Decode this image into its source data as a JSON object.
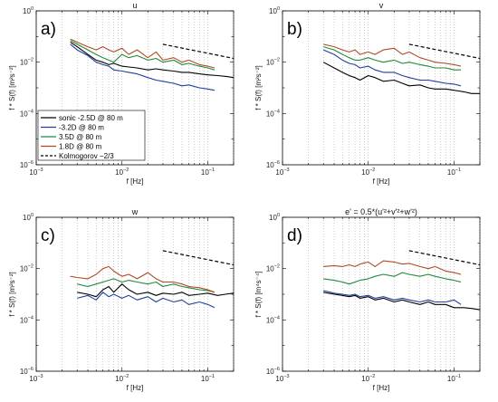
{
  "chart_data": [
    {
      "type": "line",
      "panel_label": "a)",
      "title": "u",
      "xlabel": "f [Hz]",
      "ylabel": "f * S(f) [m²s⁻²]",
      "xscale": "log",
      "yscale": "log",
      "xlim": [
        0.001,
        0.2
      ],
      "ylim": [
        1e-06,
        1
      ],
      "grid": "vertical-minor-dotted",
      "legend": {
        "placement": "center-left",
        "entries": [
          "sonic -2.5D @ 80 m",
          "-3.2D @ 80 m",
          "3.5D @ 80 m",
          "1.8D @ 80 m",
          "Kolmogorov −2/3"
        ]
      },
      "series": [
        {
          "name": "sonic -2.5D @ 80 m",
          "color": "#000000",
          "x": [
            0.0025,
            0.003,
            0.004,
            0.005,
            0.006,
            0.007,
            0.008,
            0.01,
            0.012,
            0.015,
            0.02,
            0.025,
            0.03,
            0.04,
            0.05,
            0.06,
            0.08,
            0.1,
            0.13,
            0.16,
            0.2
          ],
          "y": [
            0.06,
            0.04,
            0.02,
            0.012,
            0.01,
            0.008,
            0.009,
            0.007,
            0.0065,
            0.006,
            0.005,
            0.0055,
            0.005,
            0.0045,
            0.004,
            0.004,
            0.0035,
            0.0032,
            0.003,
            0.0028,
            0.0025
          ]
        },
        {
          "name": "-3.2D @ 80 m",
          "color": "#1f3f9c",
          "x": [
            0.0025,
            0.003,
            0.004,
            0.005,
            0.006,
            0.007,
            0.008,
            0.01,
            0.012,
            0.015,
            0.02,
            0.025,
            0.03,
            0.04,
            0.05,
            0.06,
            0.08,
            0.1,
            0.12
          ],
          "y": [
            0.05,
            0.03,
            0.018,
            0.01,
            0.008,
            0.007,
            0.005,
            0.0045,
            0.004,
            0.0035,
            0.0025,
            0.002,
            0.0018,
            0.0015,
            0.0012,
            0.0013,
            0.001,
            0.0009,
            0.0008
          ]
        },
        {
          "name": "3.5D @ 80 m",
          "color": "#1f8a3a",
          "x": [
            0.0025,
            0.003,
            0.004,
            0.005,
            0.006,
            0.007,
            0.008,
            0.01,
            0.012,
            0.015,
            0.02,
            0.025,
            0.03,
            0.04,
            0.05,
            0.06,
            0.08,
            0.1,
            0.12
          ],
          "y": [
            0.07,
            0.05,
            0.03,
            0.02,
            0.015,
            0.012,
            0.01,
            0.02,
            0.015,
            0.018,
            0.012,
            0.014,
            0.01,
            0.012,
            0.008,
            0.009,
            0.007,
            0.006,
            0.005
          ]
        },
        {
          "name": "1.8D @ 80 m",
          "color": "#b04a22",
          "x": [
            0.0025,
            0.003,
            0.004,
            0.005,
            0.006,
            0.007,
            0.008,
            0.01,
            0.012,
            0.015,
            0.02,
            0.025,
            0.03,
            0.04,
            0.05,
            0.06,
            0.08,
            0.1,
            0.12
          ],
          "y": [
            0.08,
            0.06,
            0.04,
            0.03,
            0.04,
            0.03,
            0.025,
            0.035,
            0.02,
            0.03,
            0.015,
            0.025,
            0.012,
            0.015,
            0.01,
            0.012,
            0.008,
            0.007,
            0.006
          ]
        },
        {
          "name": "Kolmogorov −2/3",
          "color": "#000000",
          "dashed": true,
          "x": [
            0.03,
            0.2
          ],
          "y": [
            0.05,
            0.014
          ]
        }
      ]
    },
    {
      "type": "line",
      "panel_label": "b)",
      "title": "v",
      "xlabel": "f [Hz]",
      "ylabel": "f * S(f) [m²s⁻²]",
      "xscale": "log",
      "yscale": "log",
      "xlim": [
        0.001,
        0.2
      ],
      "ylim": [
        1e-06,
        1
      ],
      "grid": "vertical-minor-dotted",
      "series": [
        {
          "name": "sonic -2.5D @ 80 m",
          "color": "#000000",
          "x": [
            0.003,
            0.004,
            0.005,
            0.006,
            0.007,
            0.008,
            0.01,
            0.012,
            0.015,
            0.02,
            0.025,
            0.03,
            0.04,
            0.05,
            0.06,
            0.08,
            0.1,
            0.13,
            0.16,
            0.2
          ],
          "y": [
            0.01,
            0.006,
            0.004,
            0.003,
            0.0025,
            0.002,
            0.003,
            0.0025,
            0.0018,
            0.002,
            0.0015,
            0.0012,
            0.0013,
            0.001,
            0.0009,
            0.0009,
            0.0008,
            0.0007,
            0.0006,
            0.0006
          ]
        },
        {
          "name": "-3.2D @ 80 m",
          "color": "#1f3f9c",
          "x": [
            0.003,
            0.004,
            0.005,
            0.006,
            0.007,
            0.008,
            0.01,
            0.012,
            0.015,
            0.02,
            0.025,
            0.03,
            0.04,
            0.05,
            0.06,
            0.08,
            0.1,
            0.12
          ],
          "y": [
            0.03,
            0.02,
            0.012,
            0.009,
            0.008,
            0.006,
            0.007,
            0.005,
            0.004,
            0.004,
            0.003,
            0.0025,
            0.002,
            0.002,
            0.0018,
            0.0015,
            0.0014,
            0.0012
          ]
        },
        {
          "name": "3.5D @ 80 m",
          "color": "#1f8a3a",
          "x": [
            0.003,
            0.004,
            0.005,
            0.006,
            0.007,
            0.008,
            0.01,
            0.012,
            0.015,
            0.02,
            0.025,
            0.03,
            0.04,
            0.05,
            0.06,
            0.08,
            0.1,
            0.12
          ],
          "y": [
            0.04,
            0.03,
            0.02,
            0.015,
            0.012,
            0.012,
            0.015,
            0.012,
            0.01,
            0.012,
            0.009,
            0.01,
            0.008,
            0.007,
            0.006,
            0.006,
            0.005,
            0.005
          ]
        },
        {
          "name": "1.8D @ 80 m",
          "color": "#b04a22",
          "x": [
            0.003,
            0.004,
            0.005,
            0.006,
            0.007,
            0.008,
            0.01,
            0.012,
            0.015,
            0.02,
            0.025,
            0.03,
            0.04,
            0.05,
            0.06,
            0.08,
            0.1,
            0.12
          ],
          "y": [
            0.05,
            0.04,
            0.03,
            0.025,
            0.03,
            0.02,
            0.025,
            0.02,
            0.03,
            0.035,
            0.02,
            0.025,
            0.015,
            0.012,
            0.01,
            0.009,
            0.008,
            0.007
          ]
        },
        {
          "name": "Kolmogorov −2/3",
          "color": "#000000",
          "dashed": true,
          "x": [
            0.03,
            0.2
          ],
          "y": [
            0.05,
            0.014
          ]
        }
      ]
    },
    {
      "type": "line",
      "panel_label": "c)",
      "title": "w",
      "xlabel": "f [Hz]",
      "ylabel": "f * S(f) [m²s⁻²]",
      "xscale": "log",
      "yscale": "log",
      "xlim": [
        0.001,
        0.2
      ],
      "ylim": [
        1e-06,
        1
      ],
      "grid": "vertical-minor-dotted",
      "series": [
        {
          "name": "sonic -2.5D @ 80 m",
          "color": "#000000",
          "x": [
            0.003,
            0.004,
            0.005,
            0.006,
            0.007,
            0.008,
            0.01,
            0.012,
            0.015,
            0.02,
            0.025,
            0.03,
            0.04,
            0.05,
            0.06,
            0.08,
            0.1,
            0.13,
            0.16,
            0.2
          ],
          "y": [
            0.0012,
            0.001,
            0.0008,
            0.0015,
            0.002,
            0.0012,
            0.0025,
            0.0015,
            0.001,
            0.0012,
            0.0009,
            0.0011,
            0.001,
            0.0012,
            0.0009,
            0.001,
            0.0011,
            0.0009,
            0.001,
            0.0011
          ]
        },
        {
          "name": "-3.2D @ 80 m",
          "color": "#1f3f9c",
          "x": [
            0.003,
            0.004,
            0.005,
            0.006,
            0.007,
            0.008,
            0.01,
            0.012,
            0.015,
            0.02,
            0.025,
            0.03,
            0.04,
            0.05,
            0.06,
            0.08,
            0.1,
            0.12
          ],
          "y": [
            0.0007,
            0.0009,
            0.0006,
            0.0012,
            0.0008,
            0.001,
            0.0007,
            0.0009,
            0.0006,
            0.0008,
            0.0005,
            0.0007,
            0.0005,
            0.0006,
            0.0004,
            0.0005,
            0.0004,
            0.0003
          ]
        },
        {
          "name": "3.5D @ 80 m",
          "color": "#1f8a3a",
          "x": [
            0.003,
            0.004,
            0.005,
            0.006,
            0.007,
            0.008,
            0.01,
            0.012,
            0.015,
            0.02,
            0.025,
            0.03,
            0.04,
            0.05,
            0.06,
            0.08,
            0.1,
            0.12
          ],
          "y": [
            0.0025,
            0.002,
            0.0025,
            0.003,
            0.0035,
            0.004,
            0.003,
            0.0035,
            0.003,
            0.0025,
            0.003,
            0.002,
            0.0025,
            0.002,
            0.0018,
            0.0015,
            0.0014,
            0.0012
          ]
        },
        {
          "name": "1.8D @ 80 m",
          "color": "#b04a22",
          "x": [
            0.0025,
            0.003,
            0.004,
            0.005,
            0.006,
            0.007,
            0.008,
            0.01,
            0.012,
            0.015,
            0.02,
            0.025,
            0.03,
            0.04,
            0.05,
            0.06,
            0.08,
            0.1,
            0.12
          ],
          "y": [
            0.005,
            0.0045,
            0.004,
            0.006,
            0.01,
            0.012,
            0.008,
            0.005,
            0.006,
            0.004,
            0.007,
            0.004,
            0.003,
            0.003,
            0.0025,
            0.002,
            0.0018,
            0.0015,
            0.0012
          ]
        },
        {
          "name": "Kolmogorov −2/3",
          "color": "#000000",
          "dashed": true,
          "x": [
            0.03,
            0.2
          ],
          "y": [
            0.05,
            0.014
          ]
        }
      ]
    },
    {
      "type": "line",
      "panel_label": "d)",
      "title": "e' = 0.5*(u'²+v'²+w'²)",
      "xlabel": "f [Hz]",
      "ylabel": "f * S(f) [m⁴s⁻⁴]",
      "xscale": "log",
      "yscale": "log",
      "xlim": [
        0.001,
        0.2
      ],
      "ylim": [
        1e-06,
        1
      ],
      "grid": "vertical-minor-dotted",
      "series": [
        {
          "name": "sonic -2.5D @ 80 m",
          "color": "#000000",
          "x": [
            0.003,
            0.004,
            0.005,
            0.006,
            0.007,
            0.008,
            0.01,
            0.012,
            0.015,
            0.02,
            0.025,
            0.03,
            0.04,
            0.05,
            0.06,
            0.08,
            0.1,
            0.13,
            0.16,
            0.2
          ],
          "y": [
            0.0012,
            0.001,
            0.0009,
            0.0008,
            0.0009,
            0.0007,
            0.0008,
            0.0006,
            0.0007,
            0.0005,
            0.0006,
            0.0005,
            0.0004,
            0.0005,
            0.0004,
            0.0004,
            0.0003,
            0.0003,
            0.00028,
            0.00025
          ]
        },
        {
          "name": "-3.2D @ 80 m",
          "color": "#1f3f9c",
          "x": [
            0.003,
            0.004,
            0.005,
            0.006,
            0.007,
            0.008,
            0.01,
            0.012,
            0.015,
            0.02,
            0.025,
            0.03,
            0.04,
            0.05,
            0.06,
            0.08,
            0.1,
            0.12
          ],
          "y": [
            0.0014,
            0.0011,
            0.001,
            0.0009,
            0.001,
            0.0008,
            0.0009,
            0.0007,
            0.0008,
            0.0006,
            0.0007,
            0.0006,
            0.0005,
            0.0006,
            0.0005,
            0.0005,
            0.0006,
            0.0004
          ]
        },
        {
          "name": "3.5D @ 80 m",
          "color": "#1f8a3a",
          "x": [
            0.003,
            0.004,
            0.005,
            0.006,
            0.007,
            0.008,
            0.01,
            0.012,
            0.015,
            0.02,
            0.025,
            0.03,
            0.04,
            0.05,
            0.06,
            0.08,
            0.1,
            0.12
          ],
          "y": [
            0.004,
            0.0035,
            0.003,
            0.0025,
            0.003,
            0.0035,
            0.004,
            0.005,
            0.006,
            0.005,
            0.007,
            0.006,
            0.005,
            0.006,
            0.005,
            0.004,
            0.0035,
            0.003
          ]
        },
        {
          "name": "1.8D @ 80 m",
          "color": "#b04a22",
          "x": [
            0.003,
            0.004,
            0.005,
            0.006,
            0.007,
            0.008,
            0.01,
            0.012,
            0.015,
            0.02,
            0.025,
            0.03,
            0.04,
            0.05,
            0.06,
            0.08,
            0.1,
            0.12
          ],
          "y": [
            0.012,
            0.013,
            0.012,
            0.014,
            0.012,
            0.015,
            0.018,
            0.012,
            0.02,
            0.018,
            0.015,
            0.016,
            0.012,
            0.01,
            0.012,
            0.008,
            0.007,
            0.006
          ]
        },
        {
          "name": "Kolmogorov −2/3",
          "color": "#000000",
          "dashed": true,
          "x": [
            0.03,
            0.2
          ],
          "y": [
            0.05,
            0.014
          ]
        }
      ]
    }
  ]
}
